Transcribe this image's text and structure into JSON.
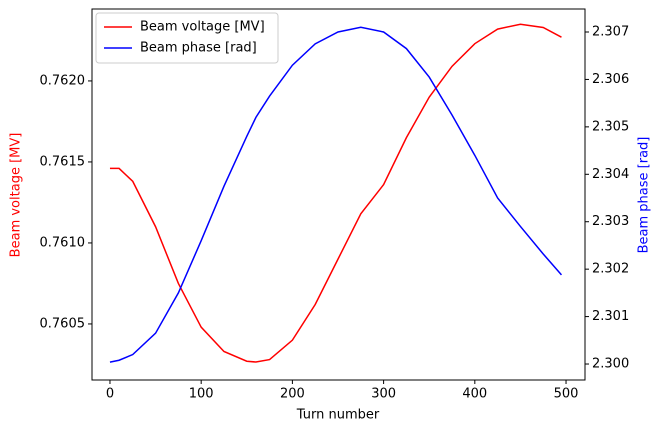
{
  "chart_data": {
    "type": "line",
    "xlabel": "Turn number",
    "ylabel": "Beam voltage [MV]",
    "y2label": "Beam phase [rad]",
    "x": [
      0,
      10,
      25,
      50,
      75,
      100,
      125,
      150,
      160,
      175,
      200,
      225,
      250,
      275,
      300,
      325,
      350,
      375,
      400,
      425,
      450,
      475,
      495
    ],
    "series": [
      {
        "name": "Beam voltage [MV]",
        "color": "#ff0000",
        "values": [
          0.76146,
          0.76146,
          0.76138,
          0.7611,
          0.76075,
          0.76048,
          0.76033,
          0.76027,
          0.760265,
          0.76028,
          0.7604,
          0.76062,
          0.7609,
          0.76118,
          0.76136,
          0.76165,
          0.7619,
          0.76209,
          0.76223,
          0.76232,
          0.76235,
          0.76233,
          0.76227
        ]
      },
      {
        "name": "Beam phase [rad]",
        "color": "#0000ff",
        "axis": "y2",
        "values": [
          2.30004,
          2.30008,
          2.3002,
          2.30065,
          2.3015,
          2.3026,
          2.30375,
          2.3048,
          2.3052,
          2.30565,
          2.3063,
          2.30675,
          2.307,
          2.3071,
          2.307,
          2.30665,
          2.30605,
          2.30525,
          2.3044,
          2.3035,
          2.3029,
          2.30232,
          2.30188
        ]
      }
    ],
    "xlim": [
      -19.7,
      520.8
    ],
    "xticks": [
      0,
      100,
      200,
      300,
      400,
      500
    ],
    "ylim": [
      0.760154,
      0.762444
    ],
    "yticks": [
      0.7605,
      {
        "value": 0.761,
        "label": "0.7610"
      },
      0.7615,
      {
        "value": 0.762,
        "label": "0.7620"
      }
    ],
    "y2lim": [
      2.299663,
      2.307485
    ],
    "y2ticks": [
      {
        "value": 2.3,
        "label": "2.300"
      },
      2.301,
      2.302,
      2.303,
      2.304,
      2.305,
      2.306,
      2.307
    ],
    "legend": "upper left"
  }
}
